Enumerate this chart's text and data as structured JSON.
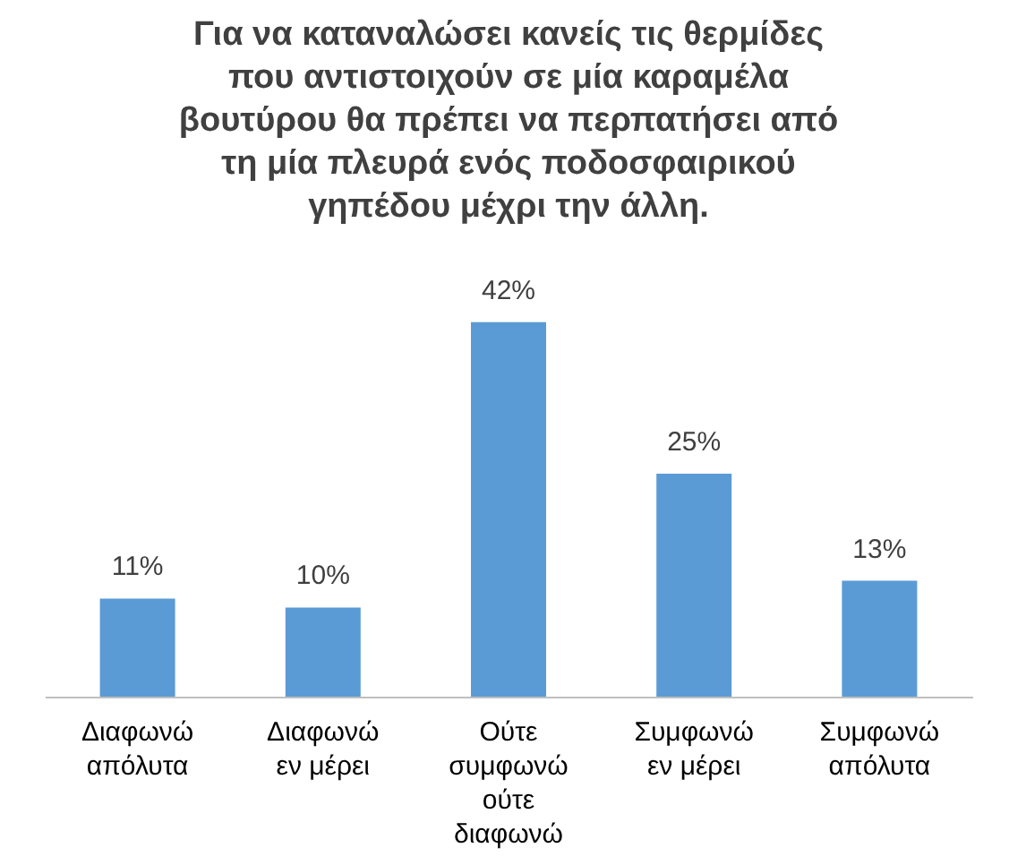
{
  "chart_data": {
    "type": "bar",
    "title": "Για να καταναλώσει κανείς τις θερμίδες που αντιστοιχούν σε μία καραμέλα βουτύρου θα πρέπει να περπατήσει από τη μία πλευρά ενός ποδοσφαιρικού γηπέδου μέχρι την άλλη.",
    "categories": [
      "Διαφωνώ απόλυτα",
      "Διαφωνώ εν μέρει",
      "Ούτε συμφωνώ ούτε διαφωνώ",
      "Συμφωνώ εν μέρει",
      "Συμφωνώ απόλυτα"
    ],
    "values": [
      11,
      10,
      42,
      25,
      13
    ],
    "value_labels": [
      "11%",
      "10%",
      "42%",
      "25%",
      "13%"
    ],
    "color": "#5b9bd5"
  }
}
